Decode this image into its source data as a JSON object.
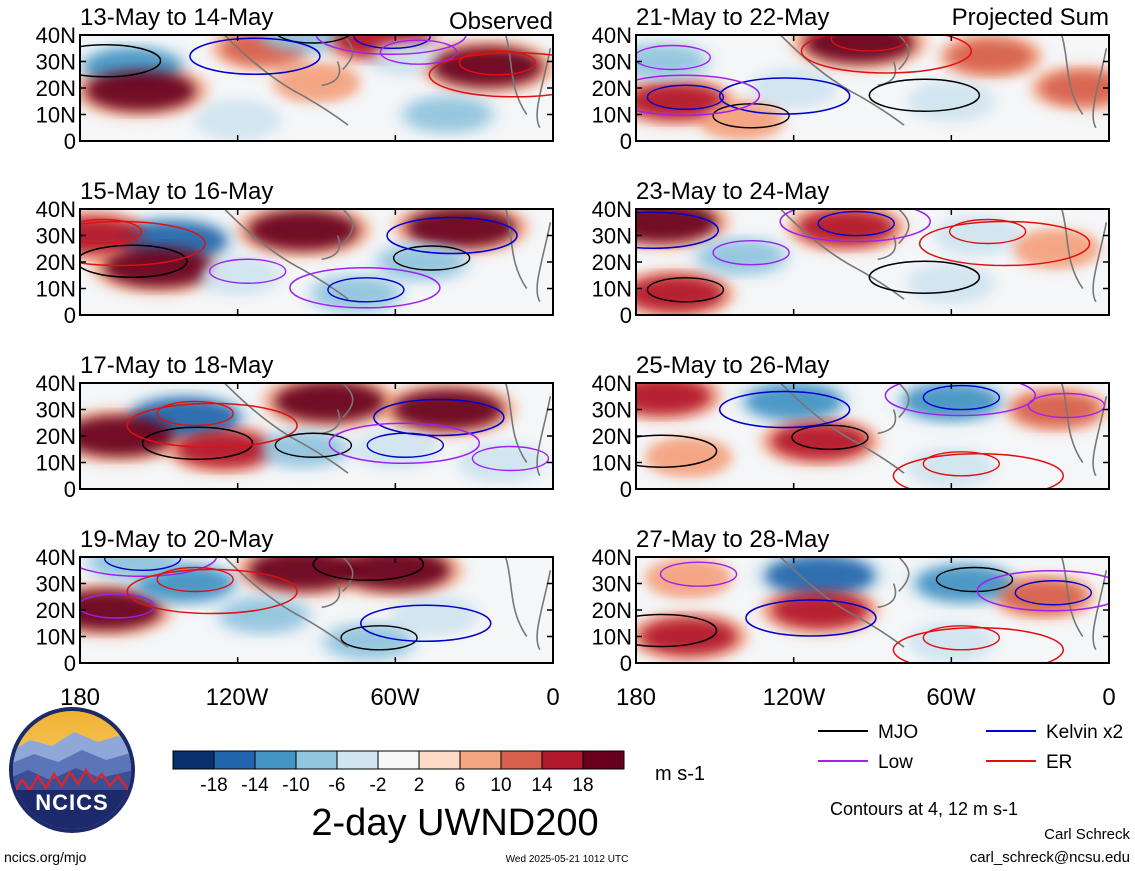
{
  "figure": {
    "title": "2-day UWND200",
    "units": "m s-1",
    "left_column_label": "Observed",
    "right_column_label": "Projected Sum",
    "contour_note": "Contours at 4, 12 m s-1",
    "author": "Carl Schreck",
    "email": "carl_schreck@ncsu.edu",
    "website": "ncics.org/mjo",
    "timestamp": "Wed 2025-05-21 1012 UTC",
    "logo_text": "NCICS"
  },
  "chart_data": {
    "type": "heatmap",
    "panels": [
      {
        "label": "13-May to 14-May",
        "column": "left",
        "row": 0,
        "anomalies": [
          {
            "lon": 160,
            "lat": 28,
            "value": -14
          },
          {
            "lon": 157,
            "lat": 19,
            "value": 18
          },
          {
            "lon": 110,
            "lat": 35,
            "value": 10
          },
          {
            "lon": 95,
            "lat": 40,
            "value": -10
          },
          {
            "lon": 65,
            "lat": 38,
            "value": 14
          },
          {
            "lon": 55,
            "lat": 32,
            "value": -6
          },
          {
            "lon": 25,
            "lat": 28,
            "value": 18
          },
          {
            "lon": 40,
            "lat": 10,
            "value": -10
          },
          {
            "lon": 120,
            "lat": 8,
            "value": -6
          },
          {
            "lon": 90,
            "lat": 22,
            "value": 6
          }
        ]
      },
      {
        "label": "15-May to 16-May",
        "column": "left",
        "row": 1,
        "anomalies": [
          {
            "lon": 145,
            "lat": 28,
            "value": -18
          },
          {
            "lon": 150,
            "lat": 18,
            "value": 18
          },
          {
            "lon": 95,
            "lat": 32,
            "value": 18
          },
          {
            "lon": 35,
            "lat": 33,
            "value": 18
          },
          {
            "lon": 50,
            "lat": 20,
            "value": -10
          },
          {
            "lon": 75,
            "lat": 8,
            "value": -10
          },
          {
            "lon": 120,
            "lat": 15,
            "value": -6
          },
          {
            "lon": 175,
            "lat": 30,
            "value": 14
          }
        ]
      },
      {
        "label": "17-May to 18-May",
        "column": "left",
        "row": 2,
        "anomalies": [
          {
            "lon": 140,
            "lat": 27,
            "value": -18
          },
          {
            "lon": 165,
            "lat": 20,
            "value": 18
          },
          {
            "lon": 125,
            "lat": 15,
            "value": 14
          },
          {
            "lon": 85,
            "lat": 33,
            "value": 18
          },
          {
            "lon": 40,
            "lat": 30,
            "value": 18
          },
          {
            "lon": 95,
            "lat": 15,
            "value": -10
          },
          {
            "lon": 60,
            "lat": 15,
            "value": -6
          },
          {
            "lon": 20,
            "lat": 10,
            "value": -6
          }
        ]
      },
      {
        "label": "19-May to 20-May",
        "column": "left",
        "row": 3,
        "anomalies": [
          {
            "lon": 170,
            "lat": 20,
            "value": 18
          },
          {
            "lon": 140,
            "lat": 30,
            "value": -14
          },
          {
            "lon": 95,
            "lat": 35,
            "value": 18
          },
          {
            "lon": 60,
            "lat": 35,
            "value": 18
          },
          {
            "lon": 110,
            "lat": 18,
            "value": -10
          },
          {
            "lon": 45,
            "lat": 18,
            "value": -6
          },
          {
            "lon": 70,
            "lat": 8,
            "value": -10
          },
          {
            "lon": 160,
            "lat": 38,
            "value": -10
          }
        ]
      },
      {
        "label": "21-May to 22-May",
        "column": "right",
        "row": 0,
        "anomalies": [
          {
            "lon": 165,
            "lat": 15,
            "value": 14
          },
          {
            "lon": 170,
            "lat": 30,
            "value": -10
          },
          {
            "lon": 95,
            "lat": 37,
            "value": 18
          },
          {
            "lon": 45,
            "lat": 32,
            "value": 10
          },
          {
            "lon": 60,
            "lat": 15,
            "value": -6
          },
          {
            "lon": 10,
            "lat": 20,
            "value": 10
          },
          {
            "lon": 120,
            "lat": 20,
            "value": -6
          },
          {
            "lon": 140,
            "lat": 8,
            "value": 6
          }
        ]
      },
      {
        "label": "23-May to 24-May",
        "column": "right",
        "row": 1,
        "anomalies": [
          {
            "lon": 170,
            "lat": 35,
            "value": 18
          },
          {
            "lon": 165,
            "lat": 8,
            "value": 14
          },
          {
            "lon": 100,
            "lat": 33,
            "value": 14
          },
          {
            "lon": 140,
            "lat": 22,
            "value": -10
          },
          {
            "lon": 50,
            "lat": 30,
            "value": -6
          },
          {
            "lon": 60,
            "lat": 12,
            "value": -6
          },
          {
            "lon": 20,
            "lat": 25,
            "value": 6
          }
        ]
      },
      {
        "label": "25-May to 26-May",
        "column": "right",
        "row": 2,
        "anomalies": [
          {
            "lon": 170,
            "lat": 35,
            "value": 14
          },
          {
            "lon": 120,
            "lat": 33,
            "value": -14
          },
          {
            "lon": 110,
            "lat": 18,
            "value": 14
          },
          {
            "lon": 60,
            "lat": 33,
            "value": -14
          },
          {
            "lon": 20,
            "lat": 30,
            "value": 10
          },
          {
            "lon": 60,
            "lat": 8,
            "value": -6
          },
          {
            "lon": 160,
            "lat": 12,
            "value": 6
          }
        ]
      },
      {
        "label": "27-May to 28-May",
        "column": "right",
        "row": 3,
        "anomalies": [
          {
            "lon": 160,
            "lat": 10,
            "value": 14
          },
          {
            "lon": 110,
            "lat": 33,
            "value": -18
          },
          {
            "lon": 110,
            "lat": 20,
            "value": 14
          },
          {
            "lon": 55,
            "lat": 30,
            "value": -14
          },
          {
            "lon": 25,
            "lat": 25,
            "value": 10
          },
          {
            "lon": 160,
            "lat": 32,
            "value": 6
          },
          {
            "lon": 60,
            "lat": 8,
            "value": -6
          }
        ]
      }
    ],
    "x_ticks": [
      "180",
      "120W",
      "60W",
      "0"
    ],
    "x_tick_values": [
      180,
      120,
      60,
      0
    ],
    "y_ticks": [
      "40N",
      "30N",
      "20N",
      "10N",
      "0"
    ],
    "y_tick_values": [
      40,
      30,
      20,
      10,
      0
    ],
    "xlim": [
      180,
      0
    ],
    "ylim": [
      0,
      40
    ],
    "colorbar": {
      "tick_labels": [
        "-18",
        "-14",
        "-10",
        "-6",
        "-2",
        "2",
        "6",
        "10",
        "14",
        "18"
      ],
      "colors": [
        "#08306b",
        "#2166ac",
        "#4393c3",
        "#92c5de",
        "#d1e5f0",
        "#f7f7f7",
        "#fddbc7",
        "#f4a582",
        "#d6604d",
        "#b2182b",
        "#67001f"
      ]
    },
    "legend": [
      {
        "label": "MJO",
        "color": "#000000"
      },
      {
        "label": "Kelvin x2",
        "color": "#0000cc"
      },
      {
        "label": "Low",
        "color": "#a020f0"
      },
      {
        "label": "ER",
        "color": "#e01010"
      }
    ]
  }
}
